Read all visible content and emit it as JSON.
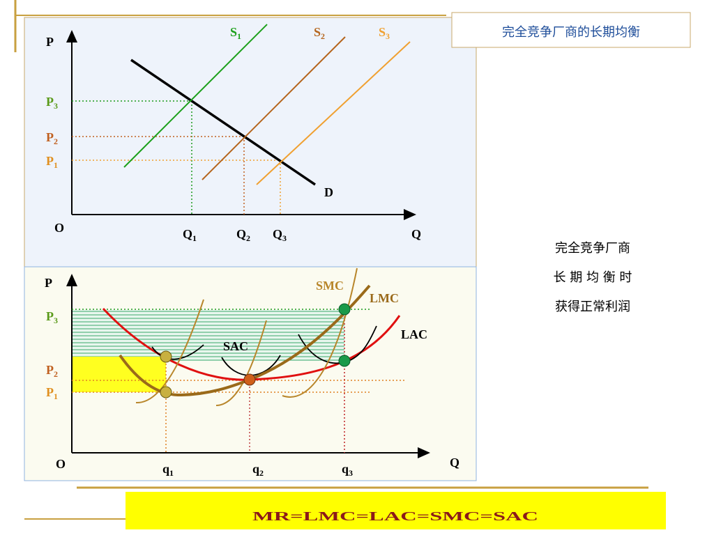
{
  "header": {
    "title": "完全竞争厂商的长期均衡"
  },
  "top_graph": {
    "y_axis": "P",
    "origin": "O",
    "x_axis": "Q",
    "supply": [
      {
        "base": "S",
        "sub": "1"
      },
      {
        "base": "S",
        "sub": "2"
      },
      {
        "base": "S",
        "sub": "3"
      }
    ],
    "demand": "D",
    "prices": [
      {
        "base": "P",
        "sub": "3"
      },
      {
        "base": "P",
        "sub": "2"
      },
      {
        "base": "P",
        "sub": "1"
      }
    ],
    "quantities": [
      {
        "base": "Q",
        "sub": "1"
      },
      {
        "base": "Q",
        "sub": "2"
      },
      {
        "base": "Q",
        "sub": "3"
      }
    ]
  },
  "bottom_graph": {
    "y_axis": "P",
    "origin": "O",
    "x_axis": "Q",
    "prices": [
      {
        "base": "P",
        "sub": "3"
      },
      {
        "base": "P",
        "sub": "2"
      },
      {
        "base": "P",
        "sub": "1"
      }
    ],
    "quantities": [
      {
        "base": "q",
        "sub": "1"
      },
      {
        "base": "q",
        "sub": "2"
      },
      {
        "base": "q",
        "sub": "3"
      }
    ],
    "curves": {
      "smc": "SMC",
      "lmc": "LMC",
      "lac": "LAC",
      "sac": "SAC"
    }
  },
  "side_text": [
    "完全竞争厂商",
    "长 期 均 衡 时",
    "获得正常利润"
  ],
  "formula": "MR=LMC=LAC=SMC=SAC"
}
